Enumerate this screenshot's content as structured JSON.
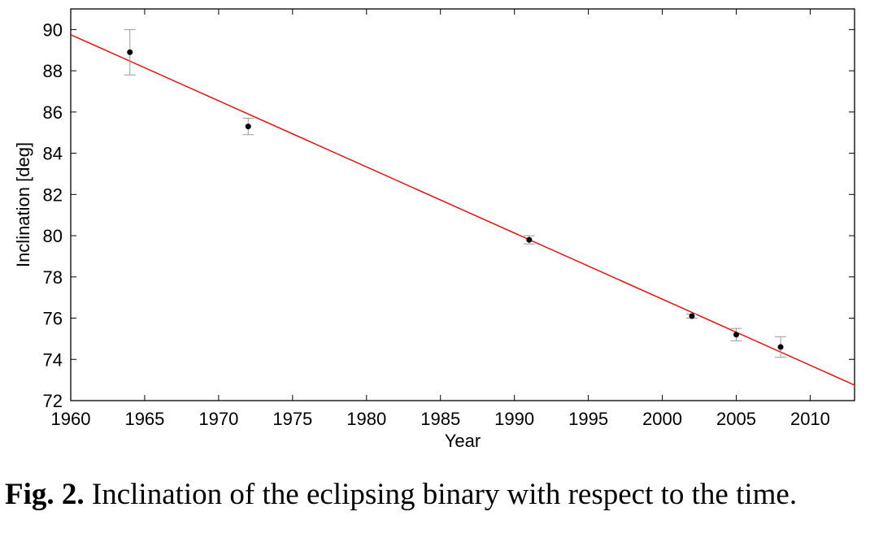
{
  "caption": {
    "label": "Fig. 2.",
    "text": "Inclination of the eclipsing binary with respect to the time."
  },
  "chart_data": {
    "type": "scatter",
    "xlabel": "Year",
    "ylabel": "Inclination [deg]",
    "xlim": [
      1960,
      2013
    ],
    "ylim": [
      72,
      91
    ],
    "xticks": [
      1960,
      1965,
      1970,
      1975,
      1980,
      1985,
      1990,
      1995,
      2000,
      2005,
      2010
    ],
    "yticks": [
      72,
      74,
      76,
      78,
      80,
      82,
      84,
      86,
      88,
      90
    ],
    "grid": false,
    "series": [
      {
        "x": [
          1964,
          1972,
          1991,
          2002,
          2005,
          2008
        ],
        "y": [
          88.9,
          85.3,
          79.8,
          76.1,
          75.2,
          74.6
        ],
        "yerr": [
          1.1,
          0.4,
          0.2,
          0.1,
          0.3,
          0.5
        ],
        "marker_color": "#000000",
        "errorbar_color": "#999999"
      }
    ],
    "fit_line": {
      "x": [
        1960,
        2013
      ],
      "y": [
        89.75,
        72.75
      ],
      "color": "#ff0000"
    }
  }
}
